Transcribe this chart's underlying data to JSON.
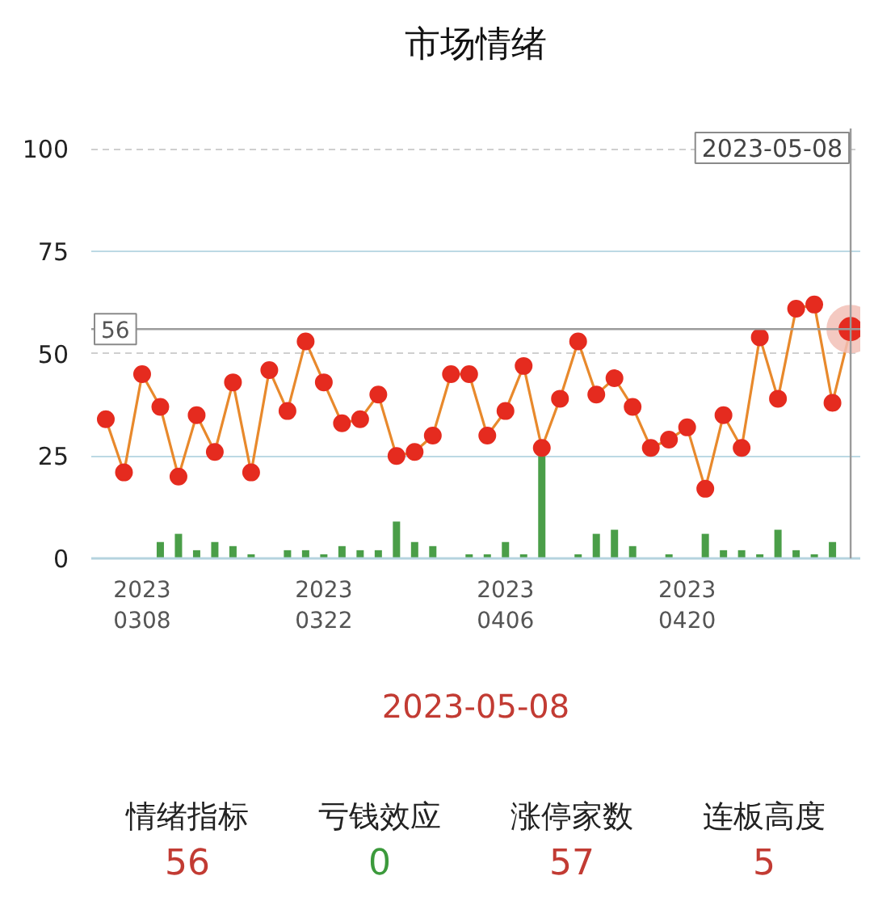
{
  "chart_data": {
    "type": "line",
    "title": "市场情绪",
    "categories": [
      null,
      null,
      "2023\n0308",
      null,
      null,
      null,
      null,
      null,
      null,
      null,
      null,
      null,
      "2023\n0322",
      null,
      null,
      null,
      null,
      null,
      null,
      null,
      null,
      null,
      "2023\n0406",
      null,
      null,
      null,
      null,
      null,
      null,
      null,
      null,
      null,
      "2023\n0420",
      null,
      null,
      null,
      null,
      null,
      null,
      null,
      null,
      null
    ],
    "series": [
      {
        "type": "bar",
        "color": "#4a9e48",
        "values": [
          null,
          null,
          null,
          4,
          6,
          2,
          4,
          3,
          1,
          null,
          2,
          2,
          1,
          3,
          2,
          2,
          9,
          4,
          3,
          null,
          1,
          1,
          4,
          1,
          25,
          null,
          1,
          6,
          7,
          3,
          null,
          1,
          null,
          6,
          2,
          2,
          1,
          7,
          2,
          1,
          4,
          null
        ]
      },
      {
        "color": "#e52b1f",
        "values": [
          34,
          21,
          45,
          37,
          20,
          35,
          26,
          43,
          21,
          46,
          36,
          53,
          43,
          33,
          34,
          40,
          25,
          26,
          30,
          45,
          45,
          30,
          36,
          47,
          27,
          39,
          53,
          40,
          44,
          37,
          27,
          29,
          32,
          17,
          35,
          27,
          54,
          39,
          61,
          62,
          38,
          56
        ]
      }
    ],
    "ylim": [
      0,
      105
    ],
    "yticks": [
      0,
      25,
      50,
      75,
      100
    ],
    "grid": "y",
    "marker": "circle",
    "line_style": "solid",
    "ref_lines": [
      {
        "axis": "y",
        "value": 56,
        "label": "56"
      }
    ],
    "annotations": [
      "2023-05-08",
      "2023-05-08",
      "情绪指标",
      "56",
      "亏钱效应",
      "0",
      "涨停家数",
      "57",
      "连板高度",
      "5"
    ]
  }
}
